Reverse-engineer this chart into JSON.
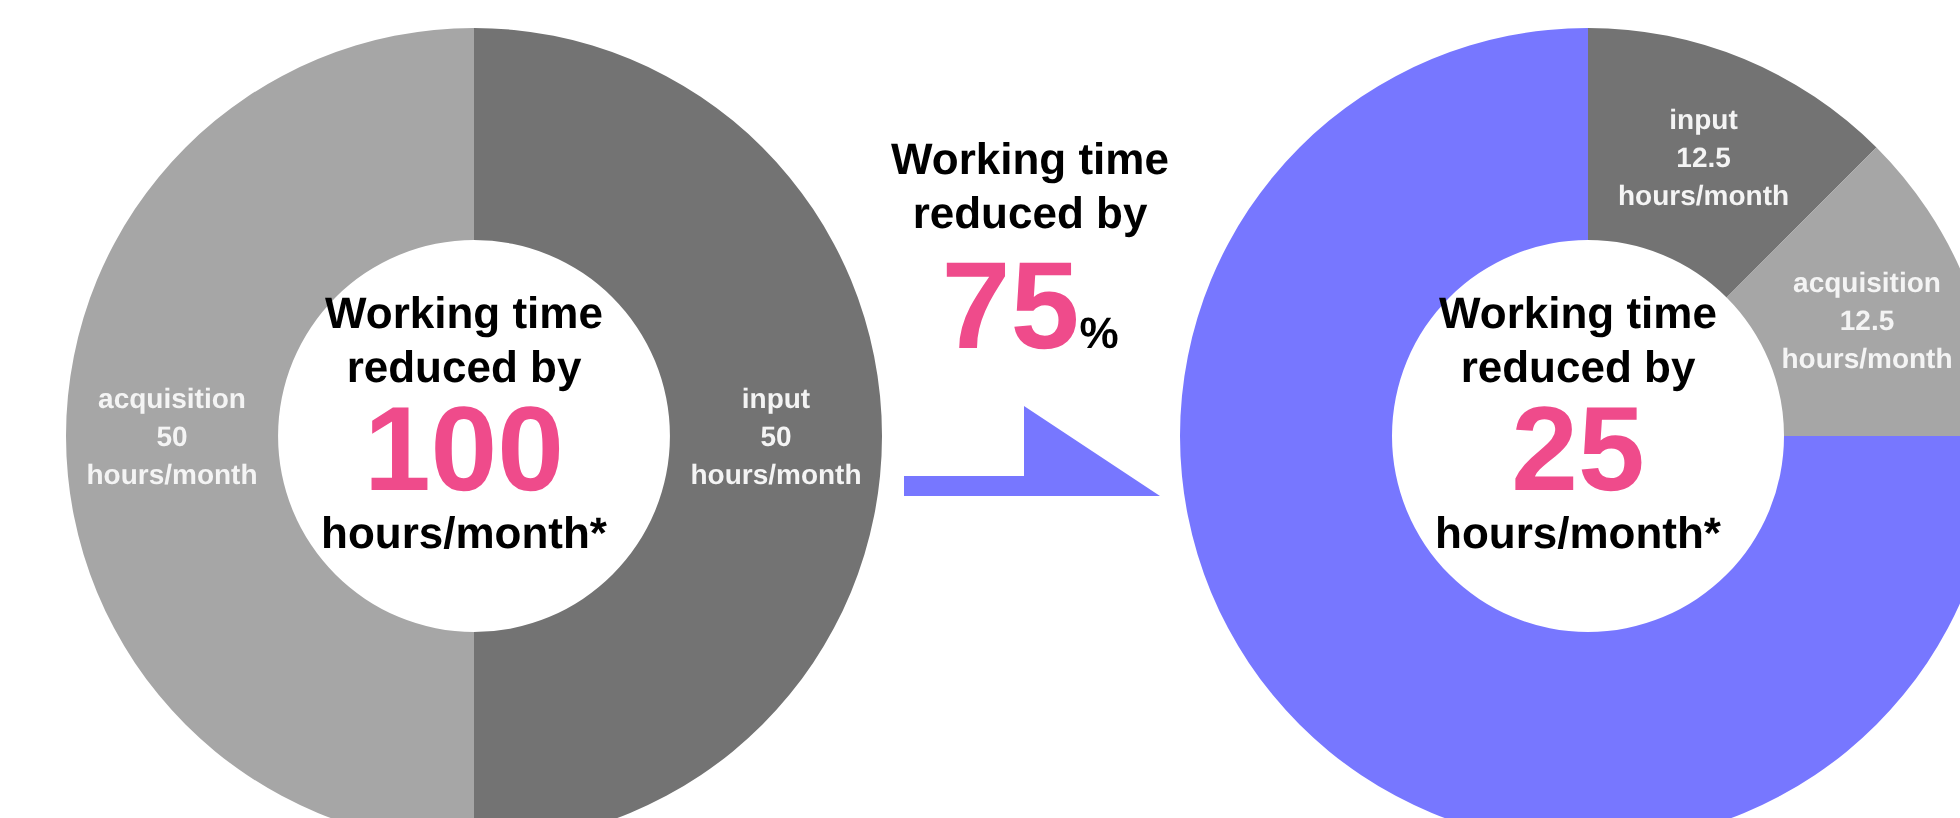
{
  "chart_data": [
    {
      "type": "donut",
      "categories": [
        "input",
        "acquisition"
      ],
      "values": [
        50,
        50
      ],
      "colors": [
        "#737373",
        "#a6a6a6"
      ],
      "value_labels": [
        "50\nhours/month",
        "50\nhours/month"
      ],
      "annotations": [
        "Working time reduced by",
        "100",
        "hours/month*"
      ]
    },
    {
      "type": "other",
      "annotations": [
        "Working time reduced by",
        "75",
        "%"
      ]
    },
    {
      "type": "donut",
      "categories": [
        "input",
        "acquisition",
        null
      ],
      "values": [
        12.5,
        12.5,
        75
      ],
      "colors": [
        "#737373",
        "#a6a6a6",
        "#7777ff"
      ],
      "value_labels": [
        "12.5\nhours/month",
        "12.5\nhours/month",
        null
      ],
      "annotations": [
        "Working time reduced by",
        "25",
        "hours/month*"
      ]
    }
  ]
}
